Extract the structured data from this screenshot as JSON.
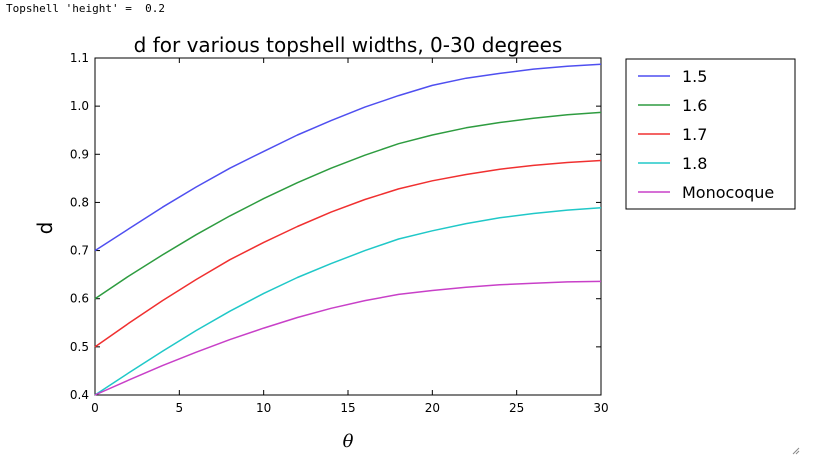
{
  "output": {
    "text": "Topshell 'height' =  0.2"
  },
  "chart_data": {
    "type": "line",
    "title": "d for various topshell widths, 0-30 degrees",
    "xlabel": "θ",
    "ylabel": "d",
    "xlim": [
      0,
      30
    ],
    "ylim": [
      0.4,
      1.1
    ],
    "xticks": [
      0,
      5,
      10,
      15,
      20,
      25,
      30
    ],
    "yticks": [
      0.4,
      0.5,
      0.6,
      0.7,
      0.8,
      0.9,
      1.0,
      1.1
    ],
    "xtick_labels": [
      "0",
      "5",
      "10",
      "15",
      "20",
      "25",
      "30"
    ],
    "ytick_labels": [
      "0.4",
      "0.5",
      "0.6",
      "0.7",
      "0.8",
      "0.9",
      "1.0",
      "1.1"
    ],
    "legend_position": "outside-right-top",
    "x": [
      0,
      2,
      4,
      6,
      8,
      10,
      12,
      14,
      16,
      18,
      20,
      22,
      24,
      26,
      28,
      30
    ],
    "series": [
      {
        "name": "1.5",
        "color": "#4f4ff0",
        "values": [
          0.7,
          0.745,
          0.79,
          0.832,
          0.871,
          0.906,
          0.94,
          0.97,
          0.998,
          1.022,
          1.043,
          1.058,
          1.068,
          1.077,
          1.083,
          1.087
        ]
      },
      {
        "name": "1.6",
        "color": "#2e9c40",
        "values": [
          0.6,
          0.647,
          0.691,
          0.733,
          0.772,
          0.808,
          0.841,
          0.871,
          0.898,
          0.922,
          0.94,
          0.955,
          0.966,
          0.975,
          0.982,
          0.987
        ]
      },
      {
        "name": "1.7",
        "color": "#f03030",
        "values": [
          0.5,
          0.549,
          0.596,
          0.64,
          0.681,
          0.717,
          0.75,
          0.78,
          0.806,
          0.828,
          0.845,
          0.858,
          0.869,
          0.877,
          0.883,
          0.887
        ]
      },
      {
        "name": "1.8",
        "color": "#20c8c8",
        "values": [
          0.4,
          0.446,
          0.491,
          0.534,
          0.574,
          0.611,
          0.644,
          0.673,
          0.7,
          0.724,
          0.741,
          0.756,
          0.768,
          0.777,
          0.784,
          0.789
        ]
      },
      {
        "name": "Monocoque",
        "color": "#c840c8",
        "values": [
          0.4,
          0.431,
          0.461,
          0.489,
          0.515,
          0.539,
          0.561,
          0.58,
          0.596,
          0.609,
          0.617,
          0.624,
          0.629,
          0.632,
          0.635,
          0.636
        ]
      }
    ]
  }
}
